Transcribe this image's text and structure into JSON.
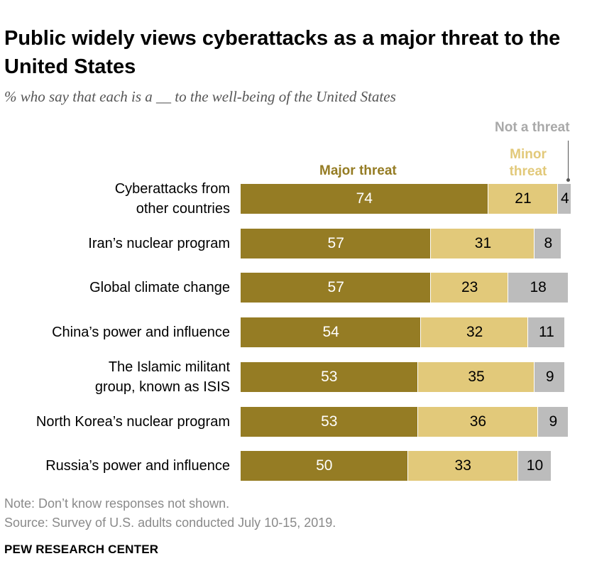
{
  "header": {
    "title": "Public widely views cyberattacks as a major threat to the United States",
    "subtitle": "% who say that each is a __ to the well-being of the United States"
  },
  "legend": {
    "major": "Major threat",
    "minor": "Minor threat",
    "not": "Not a threat"
  },
  "colors": {
    "major": "#957c24",
    "minor": "#e2c97a",
    "not": "#bcbcbc"
  },
  "chart_data": {
    "type": "bar",
    "orientation": "horizontal",
    "stacked": true,
    "categories": [
      [
        "Cyberattacks from",
        "other countries"
      ],
      [
        "Iran’s nuclear program"
      ],
      [
        "Global climate change"
      ],
      [
        "China’s power and influence"
      ],
      [
        "The Islamic militant",
        "group, known as ISIS"
      ],
      [
        "North Korea’s nuclear program"
      ],
      [
        "Russia’s power and influence"
      ]
    ],
    "series": [
      {
        "name": "Major threat",
        "values": [
          74,
          57,
          57,
          54,
          53,
          53,
          50
        ]
      },
      {
        "name": "Minor threat",
        "values": [
          21,
          31,
          23,
          32,
          35,
          36,
          33
        ]
      },
      {
        "name": "Not a threat",
        "values": [
          4,
          8,
          18,
          11,
          9,
          9,
          10
        ]
      }
    ],
    "legend_position": "top",
    "grid": false
  },
  "footer": {
    "note": "Note: Don’t know responses not shown.",
    "source": "Source: Survey of U.S. adults conducted July 10-15, 2019.",
    "org": "PEW RESEARCH CENTER"
  }
}
